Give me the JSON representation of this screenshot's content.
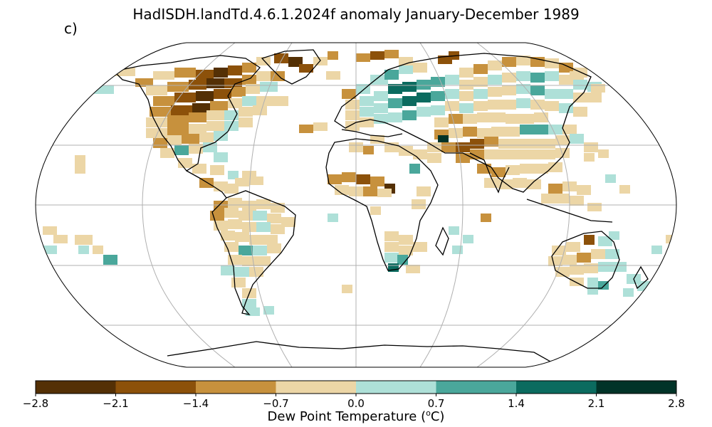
{
  "title": "HadISDH.landTd.4.6.1.2024f anomaly January-December 1989",
  "panel_label": "c)",
  "colorbar": {
    "label": "Dew Point Temperature (oC)",
    "label_main": "Dew Point Temperature (",
    "label_sup": "o",
    "label_end": "C)",
    "ticks": [
      "−2.8",
      "−2.1",
      "−1.4",
      "−0.7",
      "0.0",
      "0.7",
      "1.4",
      "2.1",
      "2.8"
    ],
    "colors": [
      "#543005",
      "#8c510a",
      "#c7913d",
      "#ecd6a6",
      "#aee0d8",
      "#4aa79b",
      "#0b6b5f",
      "#013328"
    ]
  },
  "legend_colors": {
    "c0": "#543005",
    "c1": "#8c510a",
    "c2": "#c7913d",
    "c3": "#ecd6a6",
    "c4": "#aee0d8",
    "c5": "#4aa79b",
    "c6": "#0b6b5f",
    "c7": "#013328"
  }
}
